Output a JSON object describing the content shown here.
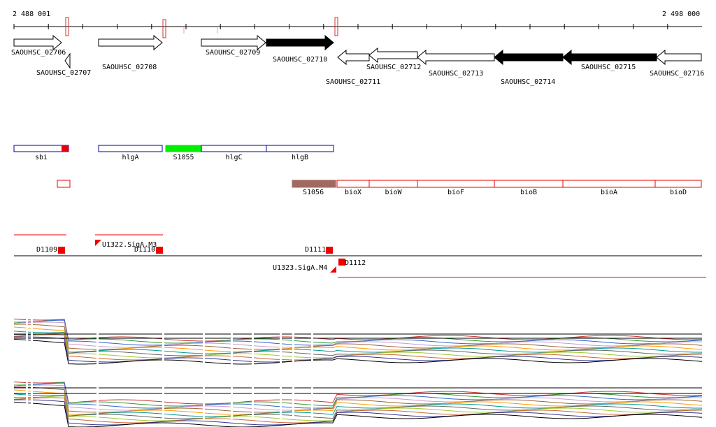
{
  "ruler": {
    "start": "2 488 001",
    "end": "2 498 000"
  },
  "genes": [
    "SAOUHSC_02706",
    "SAOUHSC_02707",
    "SAOUHSC_02708",
    "SAOUHSC_02709",
    "SAOUHSC_02710",
    "SAOUHSC_02711",
    "SAOUHSC_02712",
    "SAOUHSC_02713",
    "SAOUHSC_02714",
    "SAOUHSC_02715",
    "SAOUHSC_02716"
  ],
  "features": [
    "sbi",
    "hlgA",
    "S1055",
    "hlgC",
    "hlgB"
  ],
  "features_row2": [
    "S1056",
    "bioX",
    "bioW",
    "bioF",
    "bioB",
    "bioA",
    "bioD"
  ],
  "transcripts": [
    "D1109",
    "U1322.SigA.M3",
    "D1110",
    "D1111",
    "D1112",
    "U1323.SigA.M4"
  ]
}
